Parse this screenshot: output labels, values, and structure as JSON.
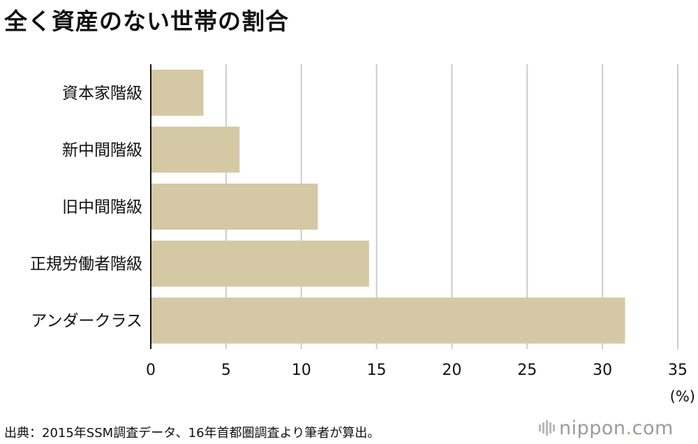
{
  "chart_data": {
    "type": "bar",
    "orientation": "horizontal",
    "title": "全く資産のない世帯の割合",
    "categories": [
      "資本家階級",
      "新中間階級",
      "旧中間階級",
      "正規労働者階級",
      "アンダークラス"
    ],
    "values": [
      3.5,
      5.9,
      11.1,
      14.5,
      31.5
    ],
    "xlim": [
      0,
      35
    ],
    "xticks": [
      "0",
      "5",
      "10",
      "15",
      "20",
      "25",
      "30",
      "35"
    ],
    "xlabel": "(%)",
    "ylabel": "",
    "grid": true,
    "bar_color": "#d5c9a5",
    "grid_color": "#cccccc",
    "axis_color": "#111111"
  },
  "source": "出典：2015年SSM調査データ、16年首都圏調査より筆者が算出。",
  "brand": {
    "name": "nippon",
    "dot": ".",
    "suffix": "com"
  }
}
